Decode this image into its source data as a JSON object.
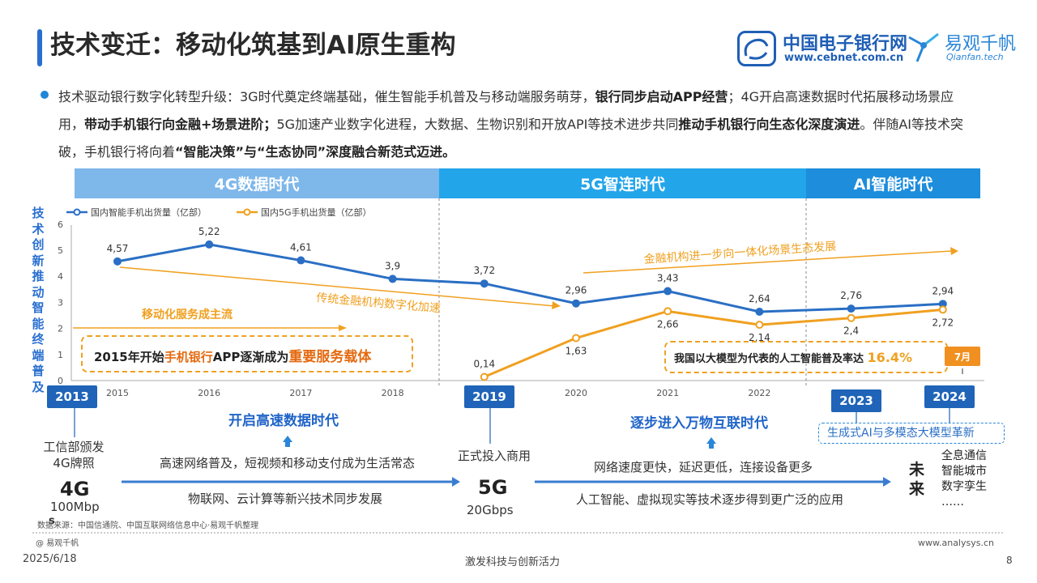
{
  "header": {
    "title": "技术变迁：移动化筑基到AI原生重构",
    "logo1_name": "中国电子银行网",
    "logo1_url": "www.cebnet.com.cn",
    "logo2_name": "易观千帆",
    "logo2_sub": "Qianfan.tech"
  },
  "intro": {
    "p1": "技术驱动银行数字化转型升级：3G时代奠定终端基础，催生智能手机普及与移动端服务萌芽，",
    "b1": "银行同步启动APP经营",
    "p2": "；4G开启高速数据时代拓展移动场景应用，",
    "b2": "带动手机银行向金融+场景进阶；",
    "p3": "5G加速产业数字化进程，大数据、生物识别和开放API等技术进步共同",
    "b3": "推动手机银行向生态化深度演进",
    "p4": "。伴随AI等技术突破，手机银行将向着",
    "b4": "“智能决策”与“生态协同”深度融合新范式迈进。"
  },
  "eras": {
    "e4g": "4G数据时代",
    "e5g": "5G智连时代",
    "eai": "AI智能时代"
  },
  "chart_data": {
    "type": "line",
    "ylabel": "技术创新推动智能终端普及",
    "ylim": [
      0,
      6
    ],
    "yticks": [
      "0",
      "1",
      "2",
      "3",
      "4",
      "5",
      "6"
    ],
    "categories": [
      "2015",
      "2016",
      "2017",
      "2018",
      "2019",
      "2020",
      "2021",
      "2022",
      "2023",
      "2024"
    ],
    "series": [
      {
        "name": "国内智能手机出货量（亿部）",
        "color": "#2a6fc4",
        "values": [
          4.57,
          5.22,
          4.61,
          3.9,
          3.72,
          2.96,
          3.43,
          2.64,
          2.76,
          2.94
        ],
        "labels": [
          "4,57",
          "5,22",
          "4,61",
          "3,9",
          "3,72",
          "2,96",
          "3,43",
          "2,64",
          "2,76",
          "2,94"
        ]
      },
      {
        "name": "国内5G手机出货量（亿部）",
        "color": "#f0a020",
        "values": [
          null,
          null,
          null,
          null,
          0.14,
          1.63,
          2.66,
          2.14,
          2.4,
          2.72
        ],
        "labels": [
          "",
          "",
          "",
          "",
          "0,14",
          "1,63",
          "2,66",
          "2,14",
          "2,4",
          "2,72"
        ]
      }
    ],
    "annotations": {
      "mobile_main": "移动化服务成主流",
      "traditional": "传统金融机构数字化加速",
      "integration": "金融机构进一步向一体化场景生态发展"
    }
  },
  "callouts": {
    "c2015_a": "2015年开始",
    "c2015_b": "手机银行",
    "c2015_c": "APP逐渐成为",
    "c2015_d": "重要服务载体",
    "ai_a": "我国以大模型为代表的人工智能普及率达",
    "ai_b": "16.4%",
    "ai_month": "7月"
  },
  "timeline": {
    "y2013": "2013",
    "y2019": "2019",
    "y2023": "2023",
    "y2024": "2024",
    "miit_1": "工信部颁发",
    "miit_2": "4G牌照",
    "g4_label": "4G",
    "g4_speed": "100Mbp",
    "g4_speed_s": "s",
    "g5_commercial": "正式投入商用",
    "g5_label": "5G",
    "g5_speed": "20Gbps",
    "head_4g": "开启高速数据时代",
    "desc_4g_1": "高速网络普及，短视频和移动支付成为生活常态",
    "desc_4g_2": "物联网、云计算等新兴技术同步发展",
    "head_5g": "逐步进入万物互联时代",
    "desc_5g_1": "网络速度更快，延迟更低，连接设备更多",
    "desc_5g_2": "人工智能、虚拟现实等技术逐步得到更广泛的应用",
    "genai": "生成式AI与多模态大模型革新",
    "future": "未来",
    "future_items": [
      "全息通信",
      "智能城市",
      "数字孪生",
      "……"
    ]
  },
  "footer": {
    "source": "数据来源：中国信通院、中国互联网络信息中心·易观千帆整理",
    "copyright": "@ 易观千帆",
    "site": "www.analysys.cn",
    "date": "2025/6/18",
    "slogan": "激发科技与创新活力",
    "page": "8"
  }
}
